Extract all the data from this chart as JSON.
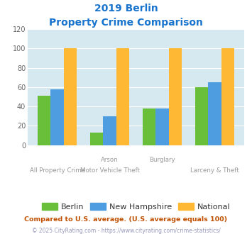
{
  "title_line1": "2019 Berlin",
  "title_line2": "Property Crime Comparison",
  "title_color": "#1874CD",
  "cat_labels_row1": [
    "",
    "Arson",
    "Burglary",
    ""
  ],
  "cat_labels_row2": [
    "All Property Crime",
    "Motor Vehicle Theft",
    "",
    "Larceny & Theft"
  ],
  "berlin": [
    51,
    13,
    38,
    60
  ],
  "new_hampshire": [
    58,
    30,
    38,
    65
  ],
  "national": [
    100,
    100,
    100,
    100
  ],
  "berlin_color": "#6abf3a",
  "nh_color": "#4d9de0",
  "national_color": "#ffb833",
  "bg_color": "#d6e8f0",
  "ylim": [
    0,
    120
  ],
  "yticks": [
    0,
    20,
    40,
    60,
    80,
    100,
    120
  ],
  "footnote1": "Compared to U.S. average. (U.S. average equals 100)",
  "footnote2": "© 2025 CityRating.com - https://www.cityrating.com/crime-statistics/",
  "footnote1_color": "#c05000",
  "footnote2_color": "#9999bb",
  "legend_labels": [
    "Berlin",
    "New Hampshire",
    "National"
  ],
  "bar_width": 0.25
}
